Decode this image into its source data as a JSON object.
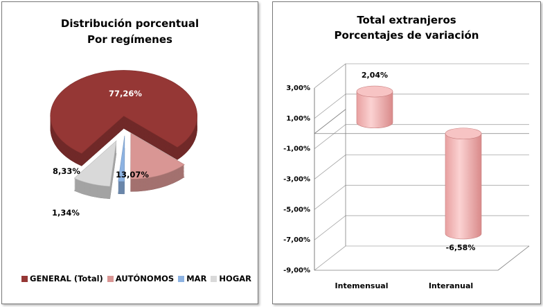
{
  "chart_data": [
    {
      "type": "pie",
      "title_line1": "Distribución porcentual",
      "title_line2": "Por regímenes",
      "categories": [
        "GENERAL (Total)",
        "AUTÓNOMOS",
        "MAR",
        "HOGAR"
      ],
      "values": [
        77.26,
        13.07,
        1.34,
        8.33
      ],
      "data_labels": [
        "77,26%",
        "13,07%",
        "1,34%",
        "8,33%"
      ],
      "colors": [
        "#953735",
        "#d99694",
        "#8db3e2",
        "#d9d9d9"
      ],
      "legend_position": "bottom",
      "exploded": true,
      "three_d": true
    },
    {
      "type": "bar",
      "title_line1": "Total extranjeros",
      "title_line2": "Porcentajes de variación",
      "categories": [
        "Intemensual",
        "Interanual"
      ],
      "values": [
        2.04,
        -6.58
      ],
      "data_labels": [
        "2,04%",
        "-6,58%"
      ],
      "y_ticks": [
        "3,00%",
        "1,00%",
        "-1,00%",
        "-3,00%",
        "-5,00%",
        "-7,00%",
        "-9,00%"
      ],
      "ylim": [
        -9,
        3
      ],
      "bar_shape": "cylinder",
      "bar_color": "#f4b8b8",
      "grid": true,
      "three_d": true
    }
  ]
}
